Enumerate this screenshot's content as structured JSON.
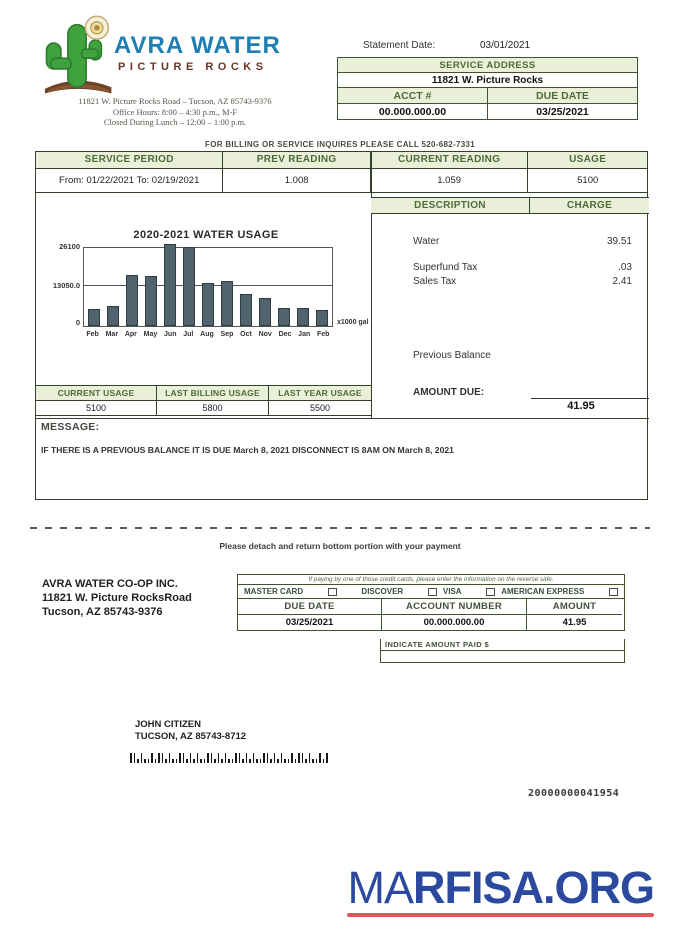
{
  "header": {
    "brand_line1": "AVRA WATER",
    "brand_line2": "PICTURE ROCKS",
    "address_line1": "11821  W.  Picture Rocks Road  –  Tucson,  AZ 85743-9376",
    "address_line2": "Office Hours: 8:00 – 4:30 p.m., M-F",
    "address_line3": "Closed During Lunch – 12:00 – 1:00 p.m."
  },
  "statement": {
    "date_label": "Statement Date:",
    "date_value": "03/01/2021",
    "service_address_label": "SERVICE ADDRESS",
    "service_address_value": "11821 W. Picture Rocks",
    "acct_label": "ACCT #",
    "due_date_label": "DUE DATE",
    "acct_value": "00.000.000.00",
    "due_date_value": "03/25/2021"
  },
  "billing_inquiry_line": "FOR BILLING OR SERVICE  INQUIRES  PLEASE  CALL 520-682-7331",
  "usage_table": {
    "headers": [
      "SERVICE PERIOD",
      "PREV READING",
      "CURRENT READING",
      "USAGE"
    ],
    "service_period": "From: 01/22/2021 To: 02/19/2021",
    "prev_reading": "1.008",
    "current_reading": "1.059",
    "usage": "5100"
  },
  "charges": {
    "description_header": "DESCRIPTION",
    "charge_header": "CHARGE",
    "items": [
      {
        "label": "Water",
        "amount": "39.51"
      },
      {
        "label": "Superfund Tax",
        "amount": ".03"
      },
      {
        "label": "Sales Tax",
        "amount": "2.41"
      }
    ],
    "previous_balance_label": "Previous Balance",
    "amount_due_label": "AMOUNT DUE:",
    "amount_due_value": "41.95"
  },
  "chart_data": {
    "type": "bar",
    "title": "2020-2021 WATER USAGE",
    "categories": [
      "Feb",
      "Mar",
      "Apr",
      "May",
      "Jun",
      "Jul",
      "Aug",
      "Sep",
      "Oct",
      "Nov",
      "Dec",
      "Jan",
      "Feb"
    ],
    "values": [
      5500,
      6500,
      16500,
      16200,
      26800,
      25700,
      14000,
      14700,
      10300,
      9200,
      5900,
      5800,
      5100
    ],
    "unit_label": "x1000 gal",
    "ytick_labels": [
      "26100",
      "13050.0",
      "0"
    ],
    "yticks": [
      26100,
      13050,
      0
    ],
    "ylim": [
      0,
      26100
    ],
    "gridline_at": 13050,
    "grid": "single horizontal line at mid tick",
    "bar_color": "#51646e",
    "xlabel": "",
    "ylabel": ""
  },
  "usage_summary": {
    "headers": [
      "CURRENT USAGE",
      "LAST BILLING USAGE",
      "LAST YEAR USAGE"
    ],
    "values": [
      "5100",
      "5800",
      "5500"
    ]
  },
  "message": {
    "label": "MESSAGE:",
    "text": "IF THERE IS A PREVIOUS  BALANCE  IT IS DUE March 8, 2021 DISCONNECT  IS 8AM ON March 8, 2021"
  },
  "detach_note": "Please detach and return bottom portion with your payment",
  "remit": {
    "company_line1": "AVRA WATER CO-OP INC.",
    "company_line2": "11821 W. Picture RocksRoad",
    "company_line3": "Tucson,  AZ 85743-9376",
    "cc_note": "If paying by one of those credit cards, please enter the information on the reverse side.",
    "cards": [
      "MASTER  CARD",
      "DISCOVER",
      "VISA",
      "AMERICAN  EXPRESS"
    ],
    "table_headers": [
      "DUE DATE",
      "ACCOUNT NUMBER",
      "AMOUNT"
    ],
    "due_date": "03/25/2021",
    "account_number": "00.000.000.00",
    "amount": "41.95",
    "indicate_label": "INDICATE  AMOUNT  PAID $"
  },
  "recipient": {
    "name": "JOHN CITIZEN",
    "address": "TUCSON, AZ 85743-8712"
  },
  "barcode_pattern": "110100101101001101010011010100110101001101010010110100101",
  "doc_number": "20000000041954",
  "footer": {
    "brand_prefix": "MA",
    "brand_suffix": "RFISA.ORG",
    "brand_color": "#2b4a9f",
    "underline_color": "#e4555a"
  },
  "colors": {
    "table_header_bg": "#eaf0d8",
    "table_header_text": "#4c6b3a",
    "table_border": "#33402b",
    "brand_blue": "#1f7fb5",
    "brand_brown": "#6b3524"
  }
}
